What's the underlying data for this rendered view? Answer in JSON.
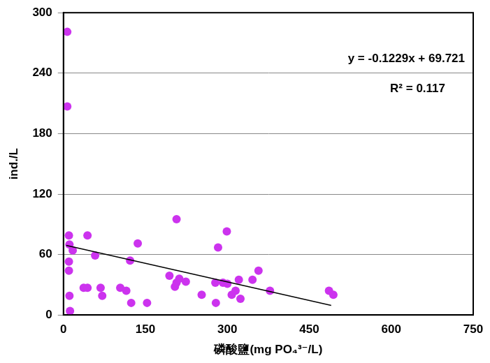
{
  "chart_data": {
    "type": "scatter",
    "x_label": "磷酸鹽(mg PO₄³⁻/L)",
    "y_label": "ind./L",
    "annotations": [
      "y = -0.1229x + 69.721",
      "R² = 0.117"
    ],
    "series": [
      {
        "type": "scatter",
        "color": "#cc33ee",
        "marker": "circle",
        "x": [
          7,
          7,
          10,
          11,
          17,
          10,
          10,
          11,
          12,
          37,
          44,
          44,
          58,
          68,
          71,
          104,
          115,
          122,
          124,
          136,
          153,
          194,
          207,
          204,
          207,
          212,
          224,
          253,
          278,
          279,
          283,
          292,
          300,
          299,
          308,
          315,
          321,
          324,
          346,
          357,
          378,
          486,
          494
        ],
        "values": [
          281,
          207,
          79,
          70,
          64,
          53,
          44,
          19,
          4,
          27,
          27,
          79,
          59,
          27,
          19,
          27,
          24,
          54,
          12,
          71,
          12,
          39,
          95,
          28,
          32,
          36,
          33,
          20,
          32,
          12,
          67,
          32,
          31,
          83,
          20,
          24,
          35,
          16,
          35,
          44,
          24,
          24,
          20
        ]
      },
      {
        "type": "line",
        "color": "#000000",
        "line_style": "solid",
        "x": [
          5,
          490
        ],
        "values": [
          69.1,
          9.5
        ]
      }
    ],
    "xlim": [
      0,
      750
    ],
    "xticks": [
      0,
      150,
      300,
      450,
      600,
      750
    ],
    "ylim": [
      0,
      300
    ],
    "yticks": [
      0,
      60,
      120,
      180,
      240,
      300
    ],
    "grid": "y"
  }
}
